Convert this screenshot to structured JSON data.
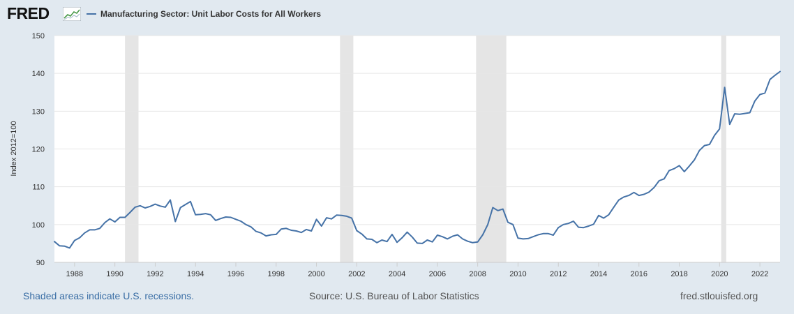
{
  "header": {
    "logo_text": "FRED",
    "logo_icon": "trend-line-icon",
    "legend_label": "Manufacturing Sector: Unit Labor Costs for All Workers",
    "series_color": "#4572a7"
  },
  "footer": {
    "recessions_note": "Shaded areas indicate U.S. recessions.",
    "source": "Source: U.S. Bureau of Labor Statistics",
    "site": "fred.stlouisfed.org"
  },
  "chart_data": {
    "type": "line",
    "title": "",
    "xlabel": "",
    "ylabel": "Index 2012=100",
    "xlim": [
      1987.0,
      2023.0
    ],
    "ylim": [
      90,
      150
    ],
    "yticks": [
      90,
      100,
      110,
      120,
      130,
      140,
      150
    ],
    "xticks": [
      1988,
      1990,
      1992,
      1994,
      1996,
      1998,
      2000,
      2002,
      2004,
      2006,
      2008,
      2010,
      2012,
      2014,
      2016,
      2018,
      2020,
      2022
    ],
    "grid": true,
    "legend_position": "top-left",
    "recessions": [
      [
        1990.5,
        1991.17
      ],
      [
        2001.17,
        2001.83
      ],
      [
        2007.92,
        2009.42
      ],
      [
        2020.08,
        2020.33
      ]
    ],
    "recession_color": "#e5e5e5",
    "series": [
      {
        "name": "Manufacturing Sector: Unit Labor Costs for All Workers",
        "color": "#4572a7",
        "x": [
          1987.0,
          1987.25,
          1987.5,
          1987.75,
          1988.0,
          1988.25,
          1988.5,
          1988.75,
          1989.0,
          1989.25,
          1989.5,
          1989.75,
          1990.0,
          1990.25,
          1990.5,
          1990.75,
          1991.0,
          1991.25,
          1991.5,
          1991.75,
          1992.0,
          1992.25,
          1992.5,
          1992.75,
          1993.0,
          1993.25,
          1993.5,
          1993.75,
          1994.0,
          1994.25,
          1994.5,
          1994.75,
          1995.0,
          1995.25,
          1995.5,
          1995.75,
          1996.0,
          1996.25,
          1996.5,
          1996.75,
          1997.0,
          1997.25,
          1997.5,
          1997.75,
          1998.0,
          1998.25,
          1998.5,
          1998.75,
          1999.0,
          1999.25,
          1999.5,
          1999.75,
          2000.0,
          2000.25,
          2000.5,
          2000.75,
          2001.0,
          2001.25,
          2001.5,
          2001.75,
          2002.0,
          2002.25,
          2002.5,
          2002.75,
          2003.0,
          2003.25,
          2003.5,
          2003.75,
          2004.0,
          2004.25,
          2004.5,
          2004.75,
          2005.0,
          2005.25,
          2005.5,
          2005.75,
          2006.0,
          2006.25,
          2006.5,
          2006.75,
          2007.0,
          2007.25,
          2007.5,
          2007.75,
          2008.0,
          2008.25,
          2008.5,
          2008.75,
          2009.0,
          2009.25,
          2009.5,
          2009.75,
          2010.0,
          2010.25,
          2010.5,
          2010.75,
          2011.0,
          2011.25,
          2011.5,
          2011.75,
          2012.0,
          2012.25,
          2012.5,
          2012.75,
          2013.0,
          2013.25,
          2013.5,
          2013.75,
          2014.0,
          2014.25,
          2014.5,
          2014.75,
          2015.0,
          2015.25,
          2015.5,
          2015.75,
          2016.0,
          2016.25,
          2016.5,
          2016.75,
          2017.0,
          2017.25,
          2017.5,
          2017.75,
          2018.0,
          2018.25,
          2018.5,
          2018.75,
          2019.0,
          2019.25,
          2019.5,
          2019.75,
          2020.0,
          2020.25,
          2020.5,
          2020.75,
          2021.0,
          2021.25,
          2021.5,
          2021.75,
          2022.0,
          2022.25,
          2022.5,
          2022.75,
          2023.0
        ],
        "values": [
          95.5,
          94.4,
          94.3,
          93.8,
          95.8,
          96.5,
          97.8,
          98.6,
          98.6,
          99.0,
          100.5,
          101.5,
          100.7,
          101.9,
          101.9,
          103.2,
          104.6,
          105.0,
          104.4,
          104.8,
          105.4,
          104.9,
          104.6,
          106.5,
          100.8,
          104.5,
          105.3,
          106.1,
          102.6,
          102.7,
          102.9,
          102.6,
          101.1,
          101.6,
          102.0,
          101.9,
          101.4,
          100.9,
          100.0,
          99.4,
          98.2,
          97.8,
          97.0,
          97.3,
          97.4,
          98.8,
          99.0,
          98.5,
          98.3,
          97.9,
          98.7,
          98.3,
          101.4,
          99.6,
          101.8,
          101.5,
          102.5,
          102.4,
          102.2,
          101.7,
          98.4,
          97.5,
          96.2,
          96.1,
          95.2,
          95.9,
          95.5,
          97.4,
          95.3,
          96.5,
          98.0,
          96.7,
          95.1,
          95.0,
          95.9,
          95.4,
          97.2,
          96.8,
          96.2,
          96.9,
          97.3,
          96.2,
          95.6,
          95.2,
          95.4,
          97.3,
          100.0,
          104.5,
          103.7,
          104.1,
          100.6,
          100.0,
          96.4,
          96.2,
          96.3,
          96.8,
          97.3,
          97.6,
          97.6,
          97.2,
          99.2,
          100.0,
          100.3,
          100.9,
          99.3,
          99.2,
          99.6,
          100.1,
          102.4,
          101.7,
          102.6,
          104.6,
          106.5,
          107.3,
          107.7,
          108.5,
          107.7,
          108.0,
          108.6,
          109.8,
          111.6,
          112.1,
          114.3,
          114.8,
          115.6,
          114.0,
          115.5,
          117.1,
          119.6,
          120.9,
          121.2,
          123.6,
          125.3,
          136.3,
          126.5,
          129.3,
          129.2,
          129.4,
          129.6,
          132.7,
          134.4,
          134.8,
          138.4,
          139.5,
          140.5
        ]
      }
    ]
  }
}
